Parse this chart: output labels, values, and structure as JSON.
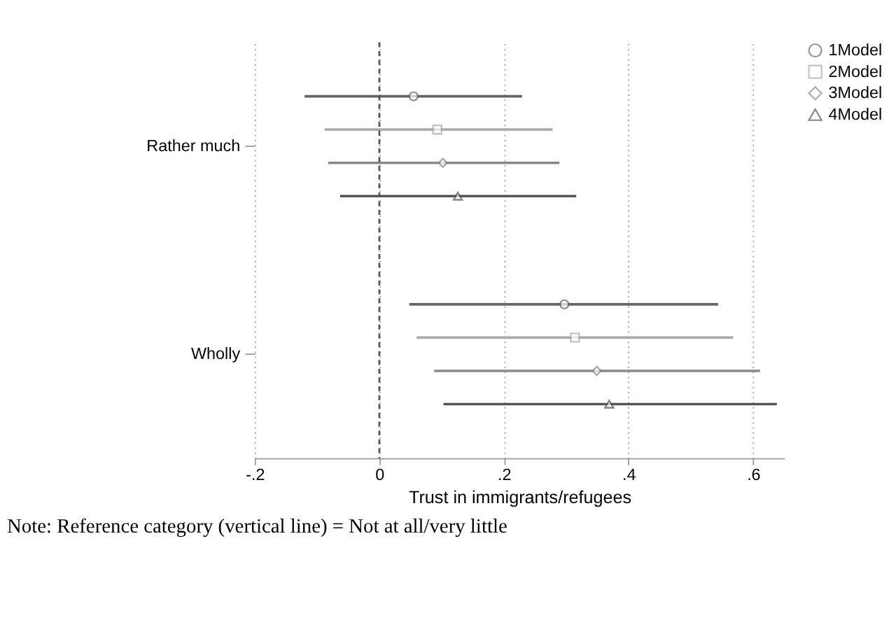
{
  "chart_data": {
    "type": "scatter",
    "orientation": "horizontal",
    "xlabel": "Trust in immigrants/refugees",
    "categories": [
      "Rather much",
      "Wholly"
    ],
    "series": [
      {
        "name": "1Model",
        "color": "#666666",
        "marker": "circle",
        "values": [
          0.055,
          0.297
        ],
        "errors": [
          [
            -0.12,
            0.229
          ],
          [
            0.048,
            0.544
          ]
        ]
      },
      {
        "name": "2Model",
        "color": "#aaaaaa",
        "marker": "square",
        "values": [
          0.093,
          0.314
        ],
        "errors": [
          [
            -0.088,
            0.278
          ],
          [
            0.06,
            0.568
          ]
        ]
      },
      {
        "name": "3Model",
        "color": "#888888",
        "marker": "diamond",
        "values": [
          0.102,
          0.349
        ],
        "errors": [
          [
            -0.082,
            0.289
          ],
          [
            0.088,
            0.611
          ]
        ]
      },
      {
        "name": "4Model",
        "color": "#555555",
        "marker": "triangle",
        "values": [
          0.126,
          0.369
        ],
        "errors": [
          [
            -0.063,
            0.316
          ],
          [
            0.103,
            0.638
          ]
        ]
      }
    ],
    "xlim": [
      -0.2,
      0.65
    ],
    "xticks": [
      {
        "value": -0.2,
        "label": "-.2"
      },
      0,
      {
        "value": 0.2,
        "label": ".2"
      },
      {
        "value": 0.4,
        "label": ".4"
      },
      {
        "value": 0.6,
        "label": ".6"
      }
    ],
    "ref_lines": [
      {
        "axis": "x",
        "value": 0,
        "line_style": "dashed",
        "color": "#555555"
      }
    ],
    "grid": "x",
    "legend": "right",
    "annotations": [
      "Note: Reference category (vertical line) = Not at all/very little"
    ]
  }
}
